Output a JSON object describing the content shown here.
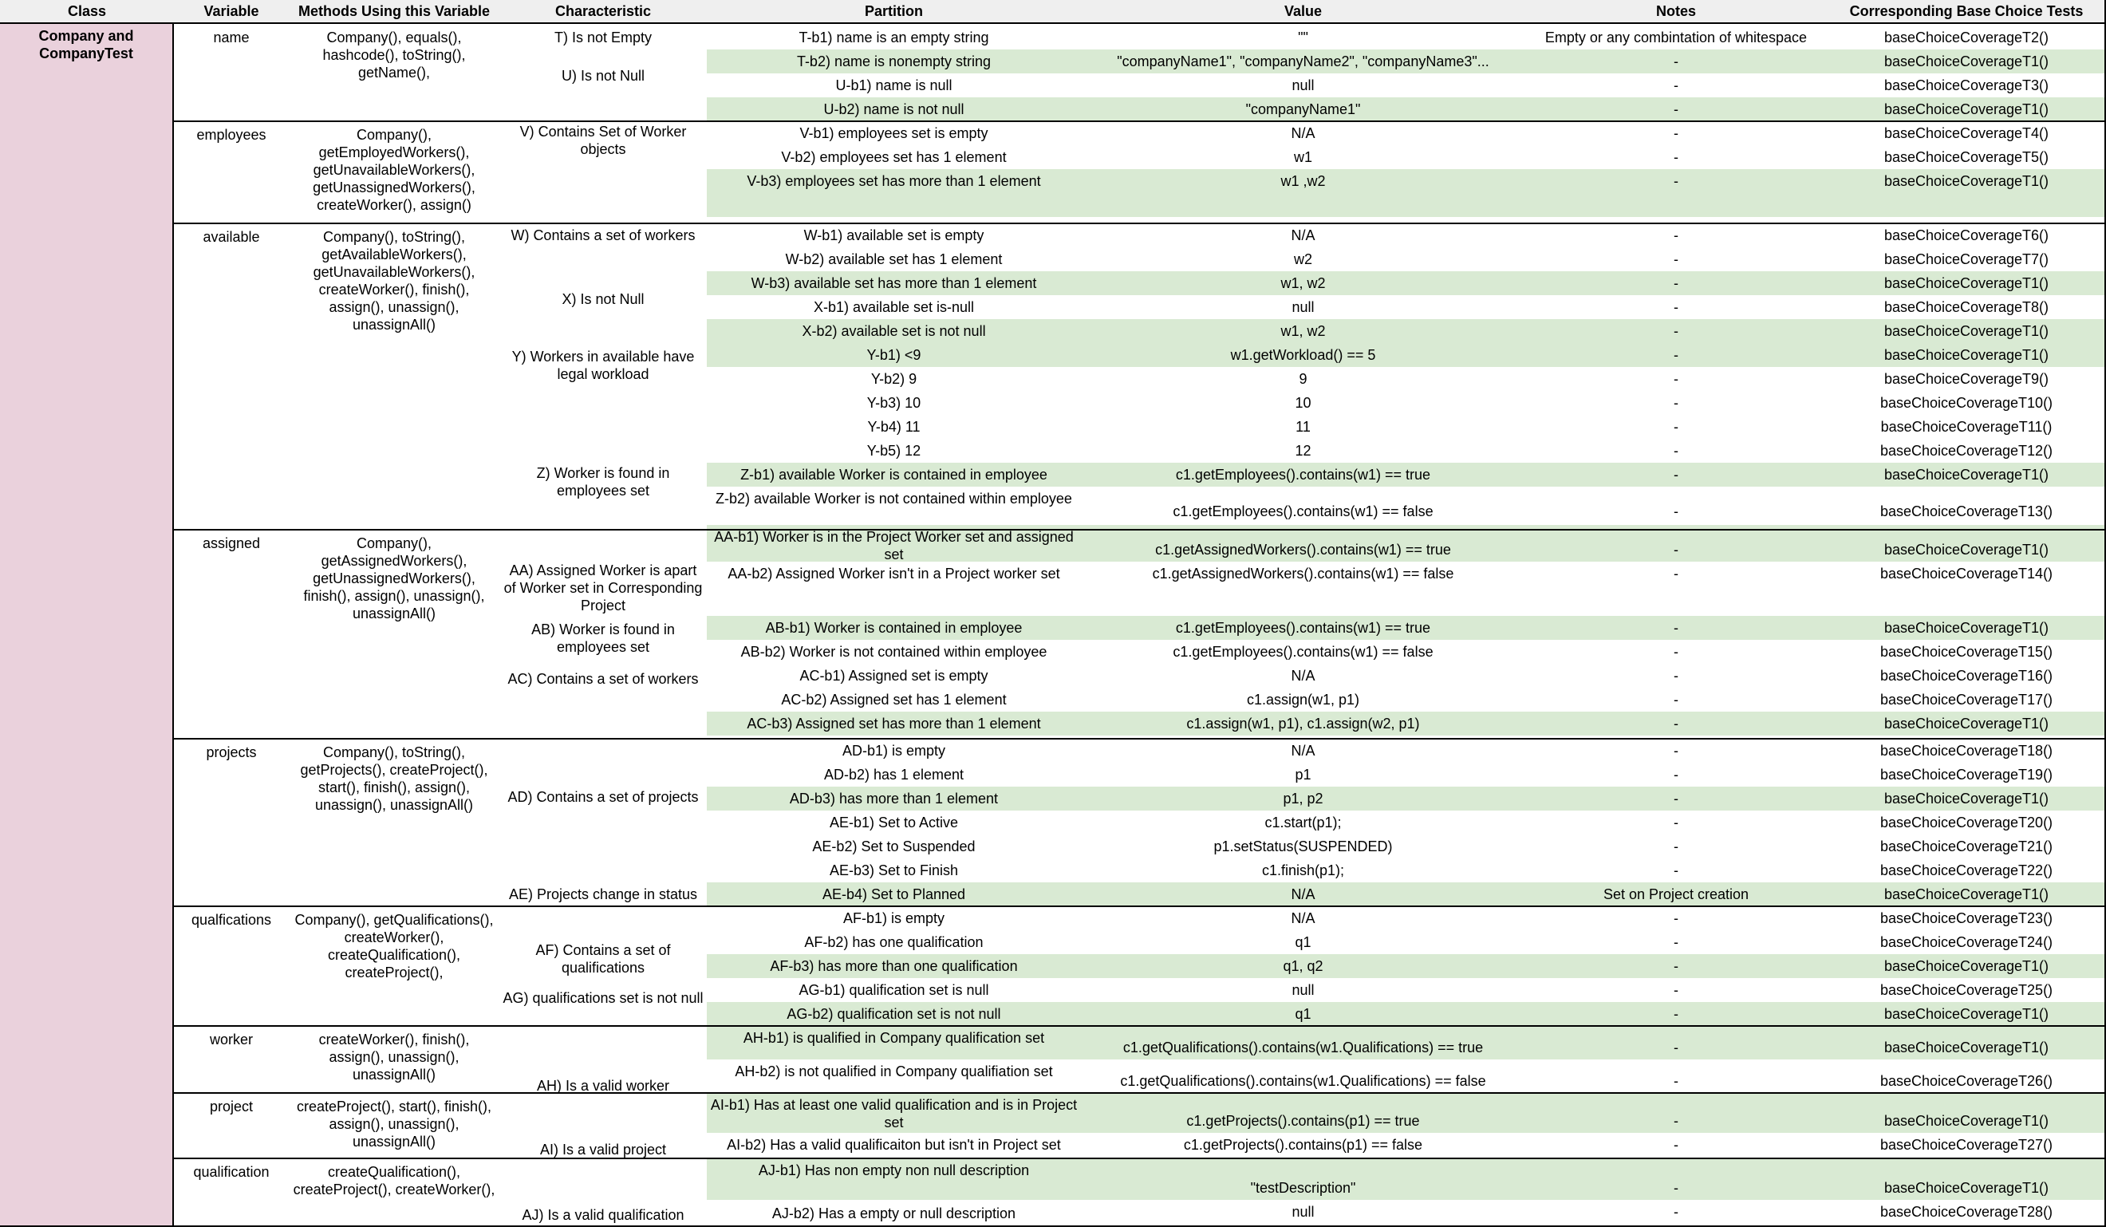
{
  "headers": [
    "Class",
    "Variable",
    "Methods Using this Variable",
    "Characteristic",
    "Partition",
    "Value",
    "Notes",
    "Corresponding Base Choice Tests"
  ],
  "class_name": "Company and CompanyTest",
  "groups": [
    {
      "variable": "name",
      "methods": "Company(), equals(), hashcode(), toString(), getName(),"
    },
    {
      "variable": "employees",
      "methods": "Company(), getEmployedWorkers(), getUnavailableWorkers(), getUnassignedWorkers(), createWorker(), assign()"
    },
    {
      "variable": "available",
      "methods": "Company(), toString(), getAvailableWorkers(), getUnavailableWorkers(), createWorker(), finish(), assign(), unassign(), unassignAll()"
    },
    {
      "variable": "assigned",
      "methods": "Company(), getAssignedWorkers(), getUnassignedWorkers(), finish(), assign(), unassign(), unassignAll()"
    },
    {
      "variable": "projects",
      "methods": "Company(), toString(), getProjects(), createProject(), start(), finish(), assign(), unassign(), unassignAll()"
    },
    {
      "variable": "qualfications",
      "methods": "Company(), getQualifications(), createWorker(), createQualification(), createProject(),"
    },
    {
      "variable": "worker",
      "methods": "createWorker(), finish(), assign(), unassign(), unassignAll()"
    },
    {
      "variable": "project",
      "methods": "createProject(), start(), finish(), assign(), unassign(), unassignAll()"
    },
    {
      "variable": "qualification",
      "methods": "createQualification(), createProject(), createWorker(),"
    }
  ],
  "characteristics": [
    "T) Is not Empty",
    "U) Is not Null",
    "V) Contains Set of Worker objects",
    "W) Contains a set of workers",
    "X) Is not Null",
    "Y) Workers in available have legal workload",
    "Z) Worker is found in employees set",
    "AA) Assigned Worker is apart of Worker set in Corresponding Project",
    "AB) Worker is found in employees set",
    "AC) Contains a set of workers",
    "AD) Contains a set of projects",
    "AE) Projects change in status",
    "AF) Contains a set of qualifications",
    "AG) qualifications set is not null",
    "AH) Is a valid worker",
    "AI) Is a valid project",
    "AJ) Is a valid qualification"
  ],
  "rows": [
    {
      "partition": "T-b1) name is an empty string",
      "value": "\"\"",
      "notes": "Empty or any combintation of whitespace",
      "test": "baseChoiceCoverageT2()",
      "base": false
    },
    {
      "partition": "T-b2) name is nonempty string",
      "value": "\"companyName1\", \"companyName2\", \"companyName3\"...",
      "notes": "-",
      "test": "baseChoiceCoverageT1()",
      "base": true
    },
    {
      "partition": "U-b1) name is null",
      "value": "null",
      "notes": "-",
      "test": "baseChoiceCoverageT3()",
      "base": false
    },
    {
      "partition": "U-b2) name is not null",
      "value": "\"companyName1\"",
      "notes": "-",
      "test": "baseChoiceCoverageT1()",
      "base": true
    },
    {
      "partition": "V-b1) employees set is empty",
      "value": "N/A",
      "notes": "-",
      "test": "baseChoiceCoverageT4()",
      "base": false
    },
    {
      "partition": "V-b2) employees set has 1 element",
      "value": "w1",
      "notes": "-",
      "test": "baseChoiceCoverageT5()",
      "base": false
    },
    {
      "partition": "V-b3) employees set has more than 1 element",
      "value": "w1 ,w2",
      "notes": "-",
      "test": "baseChoiceCoverageT1()",
      "base": true
    },
    {
      "partition": "W-b1) available set is empty",
      "value": "N/A",
      "notes": "-",
      "test": "baseChoiceCoverageT6()",
      "base": false
    },
    {
      "partition": "W-b2) available set has 1 element",
      "value": "w2",
      "notes": "-",
      "test": "baseChoiceCoverageT7()",
      "base": false
    },
    {
      "partition": "W-b3) available set has more than 1 element",
      "value": "w1, w2",
      "notes": "-",
      "test": "baseChoiceCoverageT1()",
      "base": true
    },
    {
      "partition": "X-b1) available set is-null",
      "value": "null",
      "notes": "-",
      "test": "baseChoiceCoverageT8()",
      "base": false
    },
    {
      "partition": "X-b2) available set is not null",
      "value": "w1, w2",
      "notes": "-",
      "test": "baseChoiceCoverageT1()",
      "base": true
    },
    {
      "partition": "Y-b1) <9",
      "value": "w1.getWorkload() == 5",
      "notes": "-",
      "test": "baseChoiceCoverageT1()",
      "base": true
    },
    {
      "partition": "Y-b2) 9",
      "value": "9",
      "notes": "-",
      "test": "baseChoiceCoverageT9()",
      "base": false
    },
    {
      "partition": "Y-b3) 10",
      "value": "10",
      "notes": "-",
      "test": "baseChoiceCoverageT10()",
      "base": false
    },
    {
      "partition": "Y-b4) 11",
      "value": "11",
      "notes": "-",
      "test": "baseChoiceCoverageT11()",
      "base": false
    },
    {
      "partition": "Y-b5) 12",
      "value": "12",
      "notes": "-",
      "test": "baseChoiceCoverageT12()",
      "base": false
    },
    {
      "partition": "Z-b1) available Worker is contained in employee",
      "value": "c1.getEmployees().contains(w1) == true",
      "notes": "-",
      "test": "baseChoiceCoverageT1()",
      "base": true
    },
    {
      "partition": "Z-b2) available Worker is not contained within employee",
      "value": "c1.getEmployees().contains(w1) == false",
      "notes": "-",
      "test": "baseChoiceCoverageT13()",
      "base": false
    },
    {
      "partition": "AA-b1) Worker is in the Project Worker set and assigned set",
      "value": "c1.getAssignedWorkers().contains(w1) == true",
      "notes": "-",
      "test": "baseChoiceCoverageT1()",
      "base": true
    },
    {
      "partition": "AA-b2) Assigned Worker isn't in a Project worker set",
      "value": "c1.getAssignedWorkers().contains(w1) == false",
      "notes": "-",
      "test": "baseChoiceCoverageT14()",
      "base": false
    },
    {
      "partition": "AB-b1) Worker is contained in employee",
      "value": "c1.getEmployees().contains(w1) == true",
      "notes": "-",
      "test": "baseChoiceCoverageT1()",
      "base": true
    },
    {
      "partition": "AB-b2) Worker is not contained within employee",
      "value": "c1.getEmployees().contains(w1) == false",
      "notes": "-",
      "test": "baseChoiceCoverageT15()",
      "base": false
    },
    {
      "partition": "AC-b1) Assigned set is empty",
      "value": "N/A",
      "notes": "-",
      "test": "baseChoiceCoverageT16()",
      "base": false
    },
    {
      "partition": "AC-b2) Assigned set has 1 element",
      "value": "c1.assign(w1, p1)",
      "notes": "-",
      "test": "baseChoiceCoverageT17()",
      "base": false
    },
    {
      "partition": "AC-b3) Assigned set has more than 1 element",
      "value": "c1.assign(w1, p1), c1.assign(w2, p1)",
      "notes": "-",
      "test": "baseChoiceCoverageT1()",
      "base": true
    },
    {
      "partition": "AD-b1) is empty",
      "value": "N/A",
      "notes": "-",
      "test": "baseChoiceCoverageT18()",
      "base": false
    },
    {
      "partition": "AD-b2) has 1 element",
      "value": "p1",
      "notes": "-",
      "test": "baseChoiceCoverageT19()",
      "base": false
    },
    {
      "partition": "AD-b3) has more than 1 element",
      "value": "p1, p2",
      "notes": "-",
      "test": "baseChoiceCoverageT1()",
      "base": true
    },
    {
      "partition": "AE-b1) Set to Active",
      "value": "c1.start(p1);",
      "notes": "-",
      "test": "baseChoiceCoverageT20()",
      "base": false
    },
    {
      "partition": "AE-b2) Set to Suspended",
      "value": "p1.setStatus(SUSPENDED)",
      "notes": "-",
      "test": "baseChoiceCoverageT21()",
      "base": false
    },
    {
      "partition": "AE-b3) Set to Finish",
      "value": "c1.finish(p1);",
      "notes": "-",
      "test": "baseChoiceCoverageT22()",
      "base": false
    },
    {
      "partition": "AE-b4) Set to Planned",
      "value": "N/A",
      "notes": "Set on Project creation",
      "test": "baseChoiceCoverageT1()",
      "base": true
    },
    {
      "partition": "AF-b1) is empty",
      "value": "N/A",
      "notes": "-",
      "test": "baseChoiceCoverageT23()",
      "base": false
    },
    {
      "partition": "AF-b2) has one qualification",
      "value": "q1",
      "notes": "-",
      "test": "baseChoiceCoverageT24()",
      "base": false
    },
    {
      "partition": "AF-b3) has more than one qualification",
      "value": "q1, q2",
      "notes": "-",
      "test": "baseChoiceCoverageT1()",
      "base": true
    },
    {
      "partition": "AG-b1) qualification set is null",
      "value": "null",
      "notes": "-",
      "test": "baseChoiceCoverageT25()",
      "base": false
    },
    {
      "partition": "AG-b2) qualification set is not null",
      "value": "q1",
      "notes": "-",
      "test": "baseChoiceCoverageT1()",
      "base": true
    },
    {
      "partition": "AH-b1) is qualified in Company qualification set",
      "value": "c1.getQualifications().contains(w1.Qualifications) == true",
      "notes": "-",
      "test": "baseChoiceCoverageT1()",
      "base": true
    },
    {
      "partition": "AH-b2) is not qualified in Company qualifiation set",
      "value": "c1.getQualifications().contains(w1.Qualifications) == false",
      "notes": "-",
      "test": "baseChoiceCoverageT26()",
      "base": false
    },
    {
      "partition": "AI-b1) Has at least one valid qualification and is in Project set",
      "value": "c1.getProjects().contains(p1) == true",
      "notes": "-",
      "test": "baseChoiceCoverageT1()",
      "base": true
    },
    {
      "partition": "AI-b2) Has a valid qualificaiton but isn't in Project set",
      "value": "c1.getProjects().contains(p1) == false",
      "notes": "-",
      "test": "baseChoiceCoverageT27()",
      "base": false
    },
    {
      "partition": "AJ-b1) Has non empty non null description",
      "value": "\"testDescription\"",
      "notes": "-",
      "test": "baseChoiceCoverageT1()",
      "base": true
    },
    {
      "partition": "AJ-b2) Has a empty or null description",
      "value": "null",
      "notes": "-",
      "test": "baseChoiceCoverageT28()",
      "base": false
    }
  ],
  "colors": {
    "base_choice_row": "#d9ead3",
    "class_cell": "#ead1dc",
    "header": "#efefef",
    "border": "#000000"
  }
}
